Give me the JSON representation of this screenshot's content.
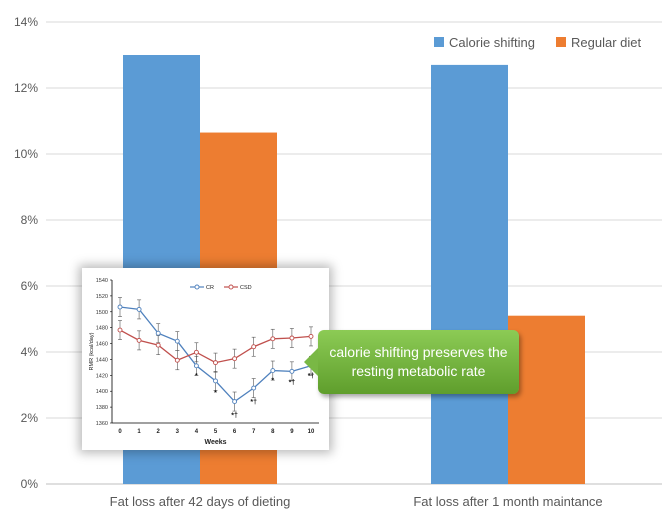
{
  "chart_data": [
    {
      "type": "bar",
      "title": "",
      "categories": [
        "Fat loss after 42 days of dieting",
        "Fat loss after 1 month maintance"
      ],
      "series": [
        {
          "name": "Calorie shifting",
          "values": [
            0.13,
            0.127
          ],
          "color": "#5b9bd5"
        },
        {
          "name": "Regular diet",
          "values": [
            0.1065,
            0.051
          ],
          "color": "#ed7d31"
        }
      ],
      "ylim": [
        0,
        0.14
      ],
      "yticks": [
        "0%",
        "2%",
        "4%",
        "6%",
        "8%",
        "10%",
        "12%",
        "14%"
      ],
      "grid": true,
      "legend": "top-right"
    },
    {
      "type": "line",
      "xlabel": "Weeks",
      "ylabel": "RMR (kcal/day)",
      "x": [
        0,
        1,
        2,
        3,
        4,
        5,
        6,
        7,
        8,
        9,
        10
      ],
      "ylim": [
        1360,
        1540
      ],
      "yticks": [
        "1360",
        "1380",
        "1400",
        "1420",
        "1440",
        "1460",
        "1480",
        "1500",
        "1520",
        "1540"
      ],
      "xticks": [
        "0",
        "1",
        "2",
        "3",
        "4",
        "5",
        "6",
        "7",
        "8",
        "9",
        "10"
      ],
      "series": [
        {
          "name": "CR",
          "values": [
            1506,
            1503,
            1473,
            1463,
            1432,
            1413,
            1387,
            1404,
            1426,
            1425,
            1432
          ],
          "color": "#4f81bd",
          "marker": "open-circle"
        },
        {
          "name": "CSD",
          "values": [
            1477,
            1464,
            1458,
            1439,
            1449,
            1436,
            1441,
            1456,
            1466,
            1467,
            1469
          ],
          "color": "#c0504d",
          "marker": "open-circle"
        }
      ],
      "annotations": [
        "*",
        "*",
        "*†",
        "*†",
        "*",
        "*†",
        "*†"
      ],
      "legend": "top-center"
    }
  ],
  "callout": {
    "text": "calorie shifting preserves the resting metabolic rate"
  }
}
